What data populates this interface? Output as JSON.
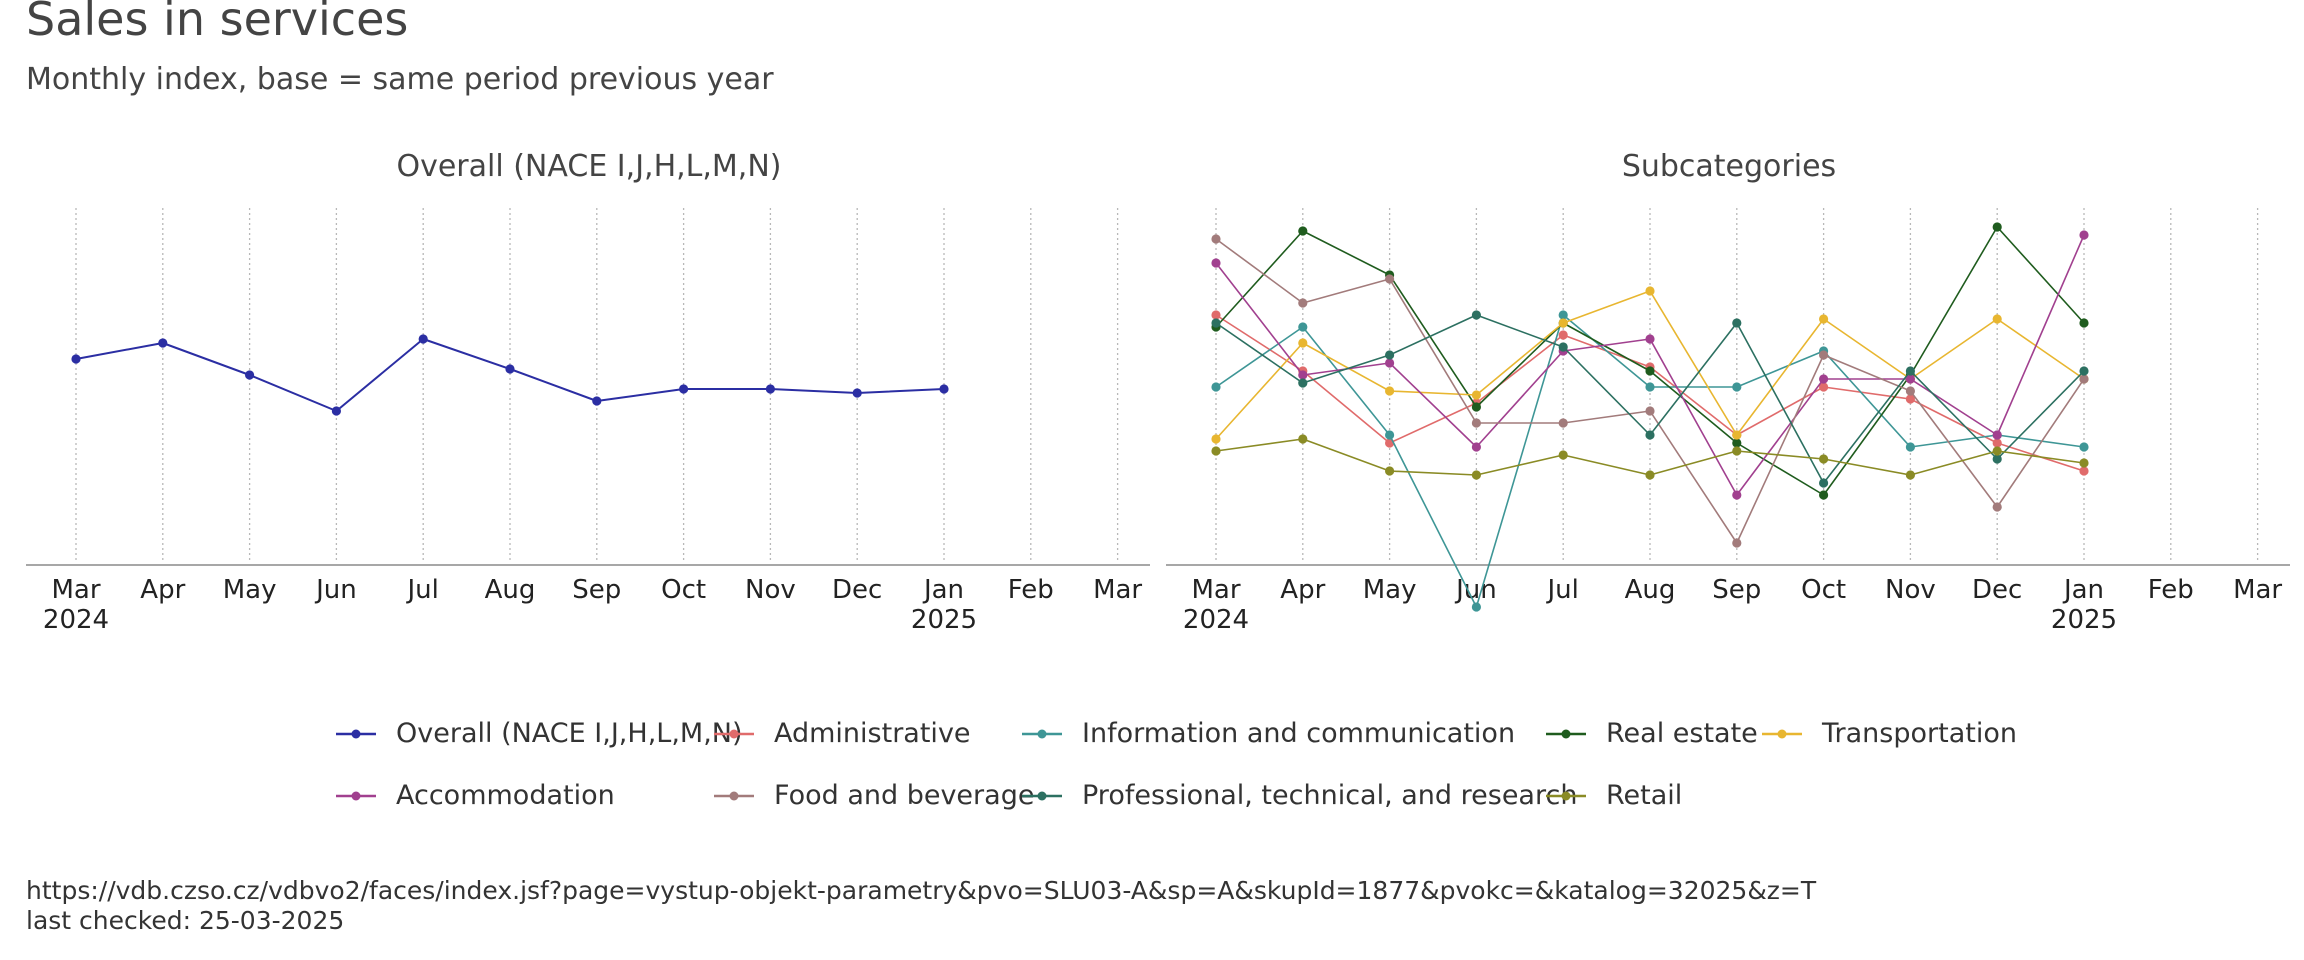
{
  "title": "Sales in services",
  "subtitle": "Monthly index, base = same period previous year",
  "source": {
    "url": "https://vdb.czso.cz/vdbvo2/faces/index.jsf?page=vystup-objekt-parametry&pvo=SLU03-A&sp=A&skupId=1877&pvokc=&katalog=32025&z=T",
    "checked": "last checked: 25-03-2025"
  },
  "chart_data": [
    {
      "type": "line",
      "title": "Overall (NACE I,J,H,L,M,N)",
      "x_ticks": [
        {
          "month": "Mar",
          "year": "2024"
        },
        {
          "month": "Apr",
          "year": ""
        },
        {
          "month": "May",
          "year": ""
        },
        {
          "month": "Jun",
          "year": ""
        },
        {
          "month": "Jul",
          "year": ""
        },
        {
          "month": "Aug",
          "year": ""
        },
        {
          "month": "Sep",
          "year": ""
        },
        {
          "month": "Oct",
          "year": ""
        },
        {
          "month": "Nov",
          "year": ""
        },
        {
          "month": "Dec",
          "year": ""
        },
        {
          "month": "Jan",
          "year": "2025"
        },
        {
          "month": "Feb",
          "year": ""
        },
        {
          "month": "Mar",
          "year": ""
        }
      ],
      "x": [
        "2024-03",
        "2024-04",
        "2024-05",
        "2024-06",
        "2024-07",
        "2024-08",
        "2024-09",
        "2024-10",
        "2024-11",
        "2024-12",
        "2025-01"
      ],
      "y_axis_labels_shown": false,
      "grid": "vertical dotted",
      "series": [
        {
          "name": "Overall (NACE I,J,H,L,M,N)",
          "color": "#2b2ea3",
          "values": [
            103.8,
            104.6,
            103.0,
            101.2,
            104.8,
            103.3,
            101.7,
            102.3,
            102.3,
            102.1,
            102.3
          ]
        }
      ]
    },
    {
      "type": "line",
      "title": "Subcategories",
      "x_ticks": [
        {
          "month": "Mar",
          "year": "2024"
        },
        {
          "month": "Apr",
          "year": ""
        },
        {
          "month": "May",
          "year": ""
        },
        {
          "month": "Jun",
          "year": ""
        },
        {
          "month": "Jul",
          "year": ""
        },
        {
          "month": "Aug",
          "year": ""
        },
        {
          "month": "Sep",
          "year": ""
        },
        {
          "month": "Oct",
          "year": ""
        },
        {
          "month": "Nov",
          "year": ""
        },
        {
          "month": "Dec",
          "year": ""
        },
        {
          "month": "Jan",
          "year": "2025"
        },
        {
          "month": "Feb",
          "year": ""
        },
        {
          "month": "Mar",
          "year": ""
        }
      ],
      "x": [
        "2024-03",
        "2024-04",
        "2024-05",
        "2024-06",
        "2024-07",
        "2024-08",
        "2024-09",
        "2024-10",
        "2024-11",
        "2024-12",
        "2025-01"
      ],
      "y_axis_labels_shown": false,
      "grid": "vertical dotted",
      "series": [
        {
          "name": "Administrative",
          "color": "#e06b6b",
          "values": [
            106.0,
            103.2,
            99.6,
            101.6,
            105.0,
            103.4,
            100.0,
            102.4,
            101.8,
            99.6,
            98.2
          ]
        },
        {
          "name": "Information and communication",
          "color": "#3e9696",
          "values": [
            102.4,
            105.4,
            100.0,
            91.4,
            106.0,
            102.4,
            102.4,
            104.2,
            99.4,
            100.0,
            99.4
          ]
        },
        {
          "name": "Real estate",
          "color": "#1f5c1e",
          "values": [
            105.4,
            110.2,
            108.0,
            101.4,
            105.6,
            103.2,
            99.6,
            97.0,
            103.0,
            110.4,
            105.6
          ]
        },
        {
          "name": "Transportation",
          "color": "#e8b630",
          "values": [
            99.8,
            104.6,
            102.2,
            102.0,
            105.6,
            107.2,
            100.0,
            105.8,
            102.8,
            105.8,
            102.8
          ]
        },
        {
          "name": "Accommodation",
          "color": "#a1408f",
          "values": [
            108.6,
            103.0,
            103.6,
            99.4,
            104.2,
            104.8,
            97.0,
            102.8,
            102.8,
            100.0,
            110.0
          ]
        },
        {
          "name": "Food and beverage",
          "color": "#a27b7b",
          "values": [
            109.8,
            106.6,
            107.8,
            100.6,
            100.6,
            101.2,
            94.6,
            104.0,
            102.2,
            96.4,
            102.8
          ]
        },
        {
          "name": "Professional, technical, and research",
          "color": "#2c7061",
          "values": [
            105.6,
            102.6,
            104.0,
            106.0,
            104.4,
            100.0,
            105.6,
            97.6,
            103.2,
            98.8,
            103.2
          ]
        },
        {
          "name": "Retail",
          "color": "#8a8b25",
          "values": [
            99.2,
            99.8,
            98.2,
            98.0,
            99.0,
            98.0,
            99.2,
            98.8,
            98.0,
            99.2,
            98.6
          ]
        }
      ]
    }
  ]
}
